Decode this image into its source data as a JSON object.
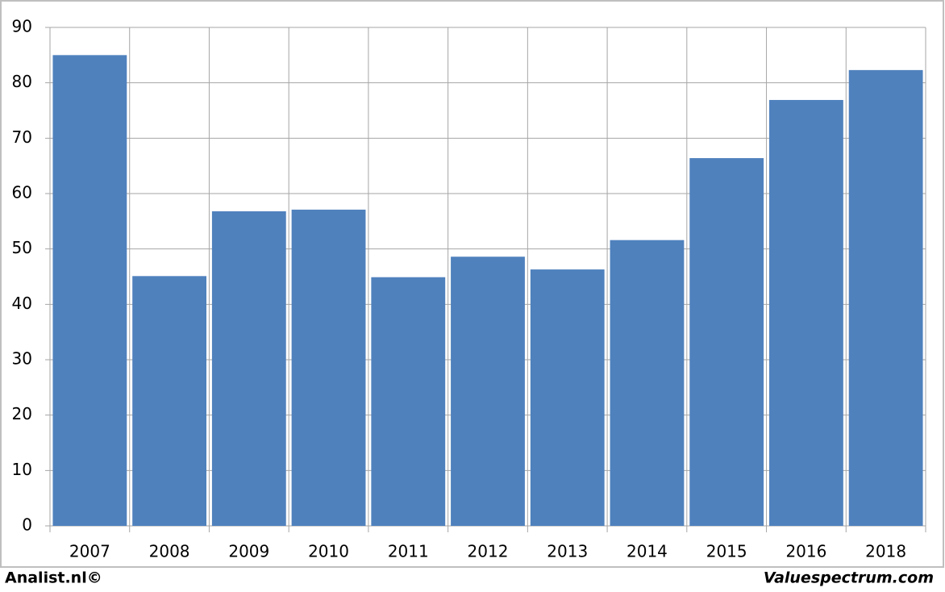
{
  "chart_data": {
    "type": "bar",
    "categories": [
      "2007",
      "2008",
      "2009",
      "2010",
      "2011",
      "2012",
      "2013",
      "2014",
      "2015",
      "2016",
      "2018"
    ],
    "values": [
      85,
      45.1,
      56.8,
      57.1,
      44.9,
      48.6,
      46.3,
      51.6,
      66.4,
      76.9,
      82.3
    ],
    "color": "#4f81bd",
    "ylim": [
      0,
      90
    ],
    "yticks": [
      0,
      10,
      20,
      30,
      40,
      50,
      60,
      70,
      80,
      90
    ],
    "grid": true
  },
  "footer": {
    "left": "Analist.nl©",
    "right": "Valuespectrum.com"
  }
}
